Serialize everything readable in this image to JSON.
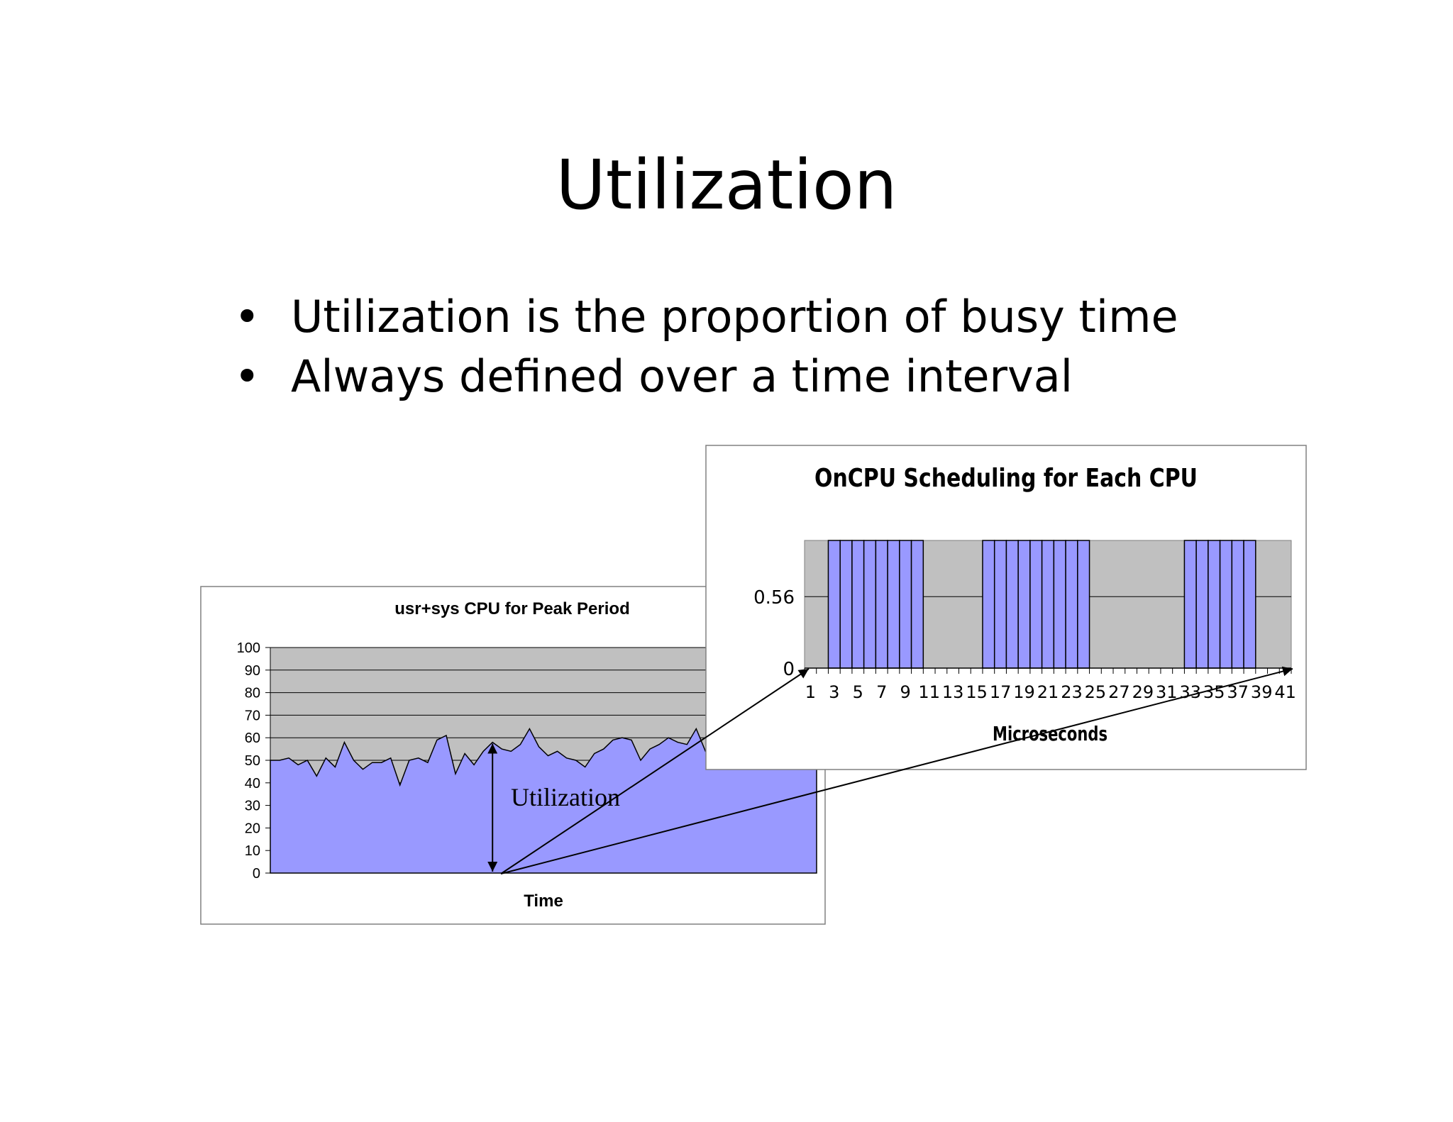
{
  "slide": {
    "title": "Utilization",
    "bullets": [
      "Utilization is the proportion of busy time",
      "Always defined over a time interval"
    ],
    "annotation": "Utilization"
  },
  "colors": {
    "area_fill": "#9999ff",
    "plot_bg": "#c0c0c0",
    "border": "#808080",
    "ink": "#000000"
  },
  "chart_data": [
    {
      "type": "area",
      "title": "usr+sys CPU for Peak Period",
      "xlabel": "Time",
      "ylabel": "",
      "ylim": [
        0,
        100
      ],
      "yticks": [
        0,
        10,
        20,
        30,
        40,
        50,
        60,
        70,
        80,
        90,
        100
      ],
      "grid": true,
      "values": [
        50,
        50,
        51,
        48,
        50,
        43,
        51,
        47,
        58,
        50,
        46,
        49,
        49,
        51,
        39,
        50,
        51,
        49,
        59,
        61,
        44,
        53,
        48,
        54,
        58,
        55,
        54,
        57,
        64,
        56,
        52,
        54,
        51,
        50,
        47,
        53,
        55,
        59,
        60,
        59,
        50,
        55,
        57,
        60,
        58,
        57,
        64,
        54,
        56,
        52,
        55,
        57,
        55,
        58,
        56,
        54,
        57,
        53,
        55,
        56
      ]
    },
    {
      "type": "bar",
      "title": "OnCPU Scheduling for Each CPU",
      "xlabel": "Microseconds",
      "ylabel": "",
      "ylim": [
        0,
        1
      ],
      "yticks": [
        0,
        0.56
      ],
      "grid": true,
      "x_tick_labels": [
        "1",
        "3",
        "5",
        "7",
        "9",
        "11",
        "13",
        "15",
        "17",
        "19",
        "21",
        "23",
        "25",
        "27",
        "29",
        "31",
        "33",
        "35",
        "37",
        "39",
        "41"
      ],
      "categories": [
        1,
        2,
        3,
        4,
        5,
        6,
        7,
        8,
        9,
        10,
        11,
        12,
        13,
        14,
        15,
        16,
        17,
        18,
        19,
        20,
        21,
        22,
        23,
        24,
        25,
        26,
        27,
        28,
        29,
        30,
        31,
        32,
        33,
        34,
        35,
        36,
        37,
        38,
        39,
        40,
        41
      ],
      "values": [
        0,
        0,
        1,
        1,
        1,
        1,
        1,
        1,
        1,
        1,
        0,
        0,
        0,
        0,
        0,
        1,
        1,
        1,
        1,
        1,
        1,
        1,
        1,
        1,
        0,
        0,
        0,
        0,
        0,
        0,
        0,
        0,
        1,
        1,
        1,
        1,
        1,
        1,
        0,
        0,
        0
      ]
    }
  ]
}
